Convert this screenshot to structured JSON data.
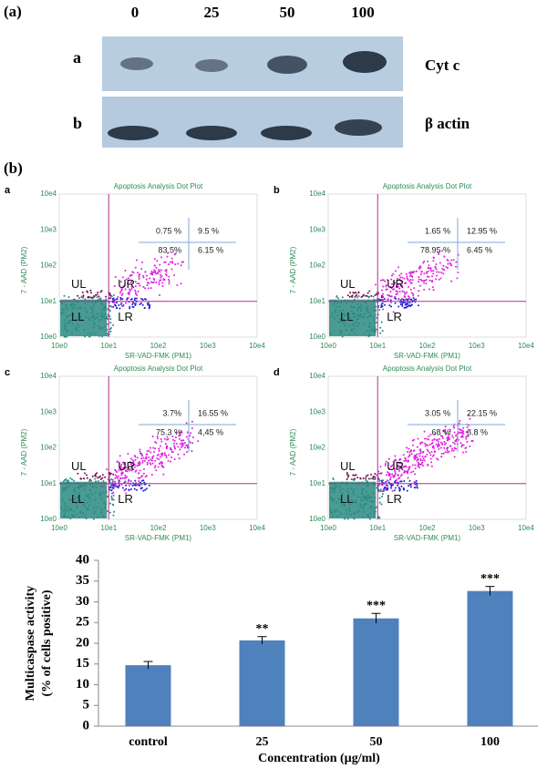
{
  "panel_a": {
    "label": "(a)",
    "concentrations": [
      "0",
      "25",
      "50",
      "100"
    ],
    "blots": [
      {
        "row": "a",
        "protein": "Cyt c"
      },
      {
        "row": "b",
        "protein": "β actin"
      }
    ]
  },
  "panel_b": {
    "label": "(b)",
    "y_axis_label": "7 - AAD (PM2)",
    "x_axis_label": "SR-VAD-FMK (PM1)",
    "ticks": [
      "10e0",
      "10e1",
      "10e2",
      "10e3",
      "10e4"
    ],
    "gate_labels": [
      "UL",
      "UR",
      "LL",
      "LR"
    ],
    "dot_plots": [
      {
        "letter": "a",
        "title": "Apoptosis Analysis Dot Plot",
        "quadrants": [
          "0.75 %",
          "9.5 %",
          "83.5%",
          "6.15 %"
        ]
      },
      {
        "letter": "b",
        "title": "Apoptosis Analysis Dot Plot",
        "quadrants": [
          "1.65 %",
          "12.95 %",
          "78.95 %",
          "6.45 %"
        ]
      },
      {
        "letter": "c",
        "title": "Apoptosis Analysis Dot Plot",
        "quadrants": [
          "3.7%",
          "16.55 %",
          "75.3 %",
          "4,45 %"
        ]
      },
      {
        "letter": "d",
        "title": "Apoptosis Analysis Dot Plot",
        "quadrants": [
          "3.05 %",
          "22.15 %",
          "68 %",
          "6.8 %"
        ]
      }
    ]
  },
  "chart_data": {
    "type": "bar",
    "categories": [
      "control",
      "25",
      "50",
      "100"
    ],
    "values": [
      14.7,
      20.7,
      26.0,
      32.6
    ],
    "errors": [
      0.9,
      0.9,
      1.2,
      1.1
    ],
    "significance": [
      null,
      "**",
      "***",
      "***"
    ],
    "color": "#4f81bd",
    "ylim": [
      0,
      40
    ],
    "yticks": [
      0,
      5,
      10,
      15,
      20,
      25,
      30,
      35,
      40
    ],
    "ylabel": [
      "Multicaspase activity",
      "(% of cells positive)"
    ],
    "xlabel": "Concentration (µg/ml)"
  }
}
